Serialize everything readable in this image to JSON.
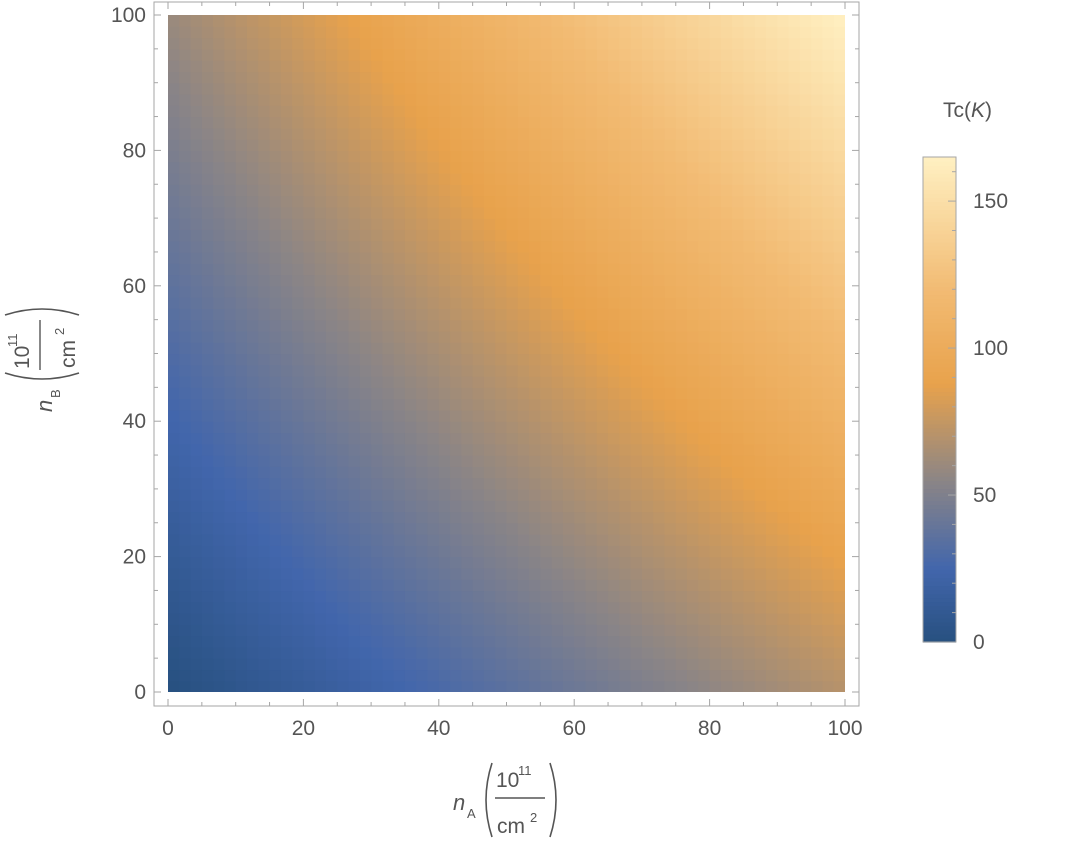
{
  "chart_data": {
    "type": "heatmap",
    "title": "",
    "x": {
      "label_symbol": "n",
      "label_subscript": "A",
      "unit_numerator": "10",
      "unit_exponent": "11",
      "unit_denominator": "cm",
      "unit_denominator_exponent": "2",
      "range": [
        0,
        100
      ],
      "ticks": [
        0,
        20,
        40,
        60,
        80,
        100
      ],
      "tick_labels": [
        "0",
        "20",
        "40",
        "60",
        "80",
        "100"
      ]
    },
    "y": {
      "label_symbol": "n",
      "label_subscript": "B",
      "unit_numerator": "10",
      "unit_exponent": "11",
      "unit_denominator": "cm",
      "unit_denominator_exponent": "2",
      "range": [
        0,
        100
      ],
      "ticks": [
        0,
        20,
        40,
        60,
        80,
        100
      ],
      "tick_labels": [
        "0",
        "20",
        "40",
        "60",
        "80",
        "100"
      ]
    },
    "colorbar": {
      "title_prefix": "Tc(",
      "title_italic": "K",
      "title_suffix": ")",
      "range": [
        0,
        165
      ],
      "ticks": [
        0,
        50,
        100,
        150
      ],
      "tick_labels": [
        "0",
        "50",
        "100",
        "150"
      ],
      "colorscale": [
        {
          "value": 0,
          "color": "#27507f"
        },
        {
          "value": 25,
          "color": "#4266ac"
        },
        {
          "value": 55,
          "color": "#8b8586"
        },
        {
          "value": 88,
          "color": "#e8a24c"
        },
        {
          "value": 120,
          "color": "#f2bb73"
        },
        {
          "value": 165,
          "color": "#fff0c2"
        }
      ]
    },
    "grid": false,
    "legend": "colorbar-right",
    "corner_values": {
      "nA0_nB0": 0,
      "nA100_nB0": 70,
      "nA0_nB100": 60,
      "nA100_nB100": 165
    },
    "approx_values": [
      {
        "nA": 20,
        "nB": 0,
        "Tc": 22
      },
      {
        "nA": 50,
        "nB": 0,
        "Tc": 40
      },
      {
        "nA": 0,
        "nB": 50,
        "Tc": 30
      },
      {
        "nA": 50,
        "nB": 50,
        "Tc": 88
      },
      {
        "nA": 40,
        "nB": 100,
        "Tc": 100
      },
      {
        "nA": 100,
        "nB": 50,
        "Tc": 110
      }
    ]
  }
}
